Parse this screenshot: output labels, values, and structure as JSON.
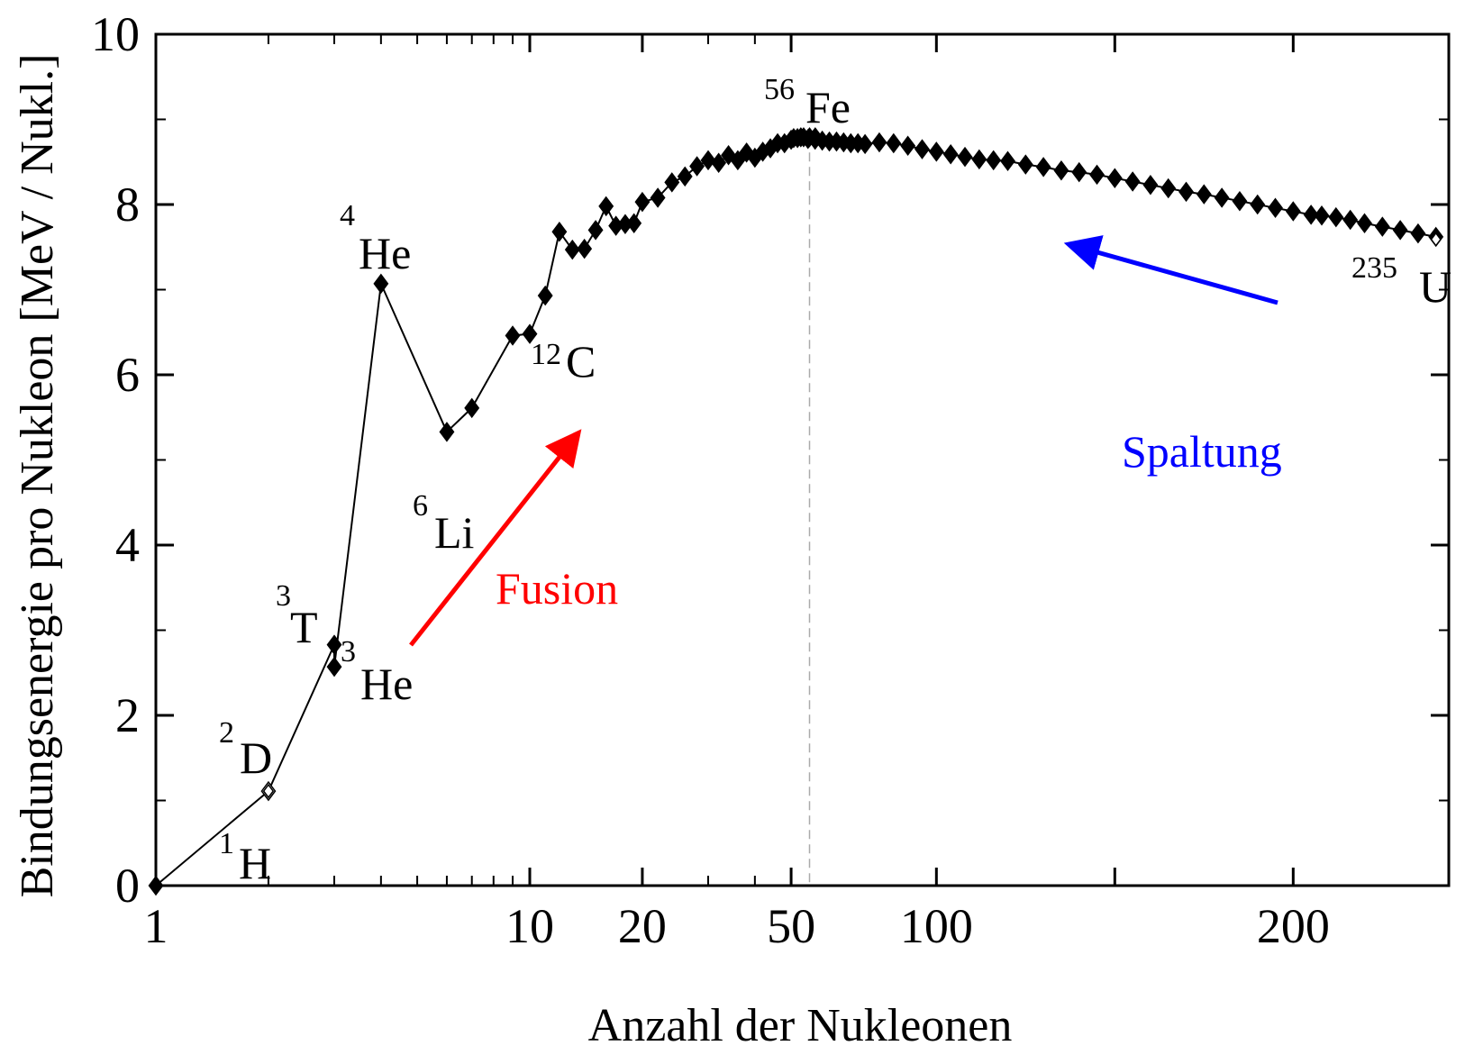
{
  "chart_data": {
    "type": "line",
    "xlabel": "Anzahl der Nukleonen",
    "ylabel": "Bindungsenergie pro Nukleon [MeV / Nukl.]",
    "ylim": [
      0,
      10
    ],
    "xlim": [
      1,
      240
    ],
    "x_scale": "broken: log below ~58, linear above",
    "x_ticks": [
      {
        "value": 1,
        "label": "1"
      },
      {
        "value": 10,
        "label": "10"
      },
      {
        "value": 20,
        "label": "20"
      },
      {
        "value": 50,
        "label": "50"
      },
      {
        "value": 100,
        "label": "100"
      },
      {
        "value": 200,
        "label": "200"
      }
    ],
    "y_ticks": [
      {
        "value": 0,
        "label": "0"
      },
      {
        "value": 2,
        "label": "2"
      },
      {
        "value": 4,
        "label": "4"
      },
      {
        "value": 6,
        "label": "6"
      },
      {
        "value": 8,
        "label": "8"
      },
      {
        "value": 10,
        "label": "10"
      }
    ],
    "grid": false,
    "series": [
      {
        "marker": "filled-diamond",
        "color": "#000000",
        "points": [
          [
            1,
            0.0
          ],
          [
            2,
            1.11
          ],
          [
            3,
            2.83
          ],
          [
            3,
            2.57
          ],
          [
            4,
            7.07
          ],
          [
            6,
            5.33
          ],
          [
            7,
            5.61
          ],
          [
            9,
            6.46
          ],
          [
            10,
            6.48
          ],
          [
            11,
            6.93
          ],
          [
            12,
            7.68
          ],
          [
            13,
            7.47
          ],
          [
            14,
            7.48
          ],
          [
            15,
            7.7
          ],
          [
            16,
            7.98
          ],
          [
            17,
            7.75
          ],
          [
            18,
            7.77
          ],
          [
            19,
            7.78
          ],
          [
            20,
            8.03
          ],
          [
            22,
            8.08
          ],
          [
            24,
            8.26
          ],
          [
            26,
            8.33
          ],
          [
            28,
            8.45
          ],
          [
            30,
            8.52
          ],
          [
            32,
            8.49
          ],
          [
            34,
            8.58
          ],
          [
            36,
            8.52
          ],
          [
            38,
            8.61
          ],
          [
            40,
            8.55
          ],
          [
            42,
            8.62
          ],
          [
            44,
            8.66
          ],
          [
            46,
            8.72
          ],
          [
            48,
            8.72
          ],
          [
            50,
            8.76
          ],
          [
            52,
            8.78
          ],
          [
            54,
            8.79
          ],
          [
            56,
            8.79
          ],
          [
            58,
            8.79
          ],
          [
            60,
            8.78
          ],
          [
            62,
            8.79
          ],
          [
            64,
            8.77
          ],
          [
            66,
            8.76
          ],
          [
            68,
            8.75
          ],
          [
            70,
            8.74
          ],
          [
            72,
            8.74
          ],
          [
            74,
            8.73
          ],
          [
            76,
            8.72
          ],
          [
            78,
            8.72
          ],
          [
            80,
            8.71
          ],
          [
            84,
            8.73
          ],
          [
            88,
            8.72
          ],
          [
            92,
            8.69
          ],
          [
            96,
            8.65
          ],
          [
            100,
            8.62
          ],
          [
            104,
            8.59
          ],
          [
            108,
            8.56
          ],
          [
            112,
            8.53
          ],
          [
            116,
            8.52
          ],
          [
            120,
            8.51
          ],
          [
            125,
            8.47
          ],
          [
            130,
            8.44
          ],
          [
            135,
            8.4
          ],
          [
            140,
            8.38
          ],
          [
            145,
            8.35
          ],
          [
            150,
            8.31
          ],
          [
            155,
            8.27
          ],
          [
            160,
            8.23
          ],
          [
            165,
            8.19
          ],
          [
            170,
            8.15
          ],
          [
            175,
            8.12
          ],
          [
            180,
            8.08
          ],
          [
            185,
            8.04
          ],
          [
            190,
            8.0
          ],
          [
            195,
            7.96
          ],
          [
            200,
            7.92
          ],
          [
            205,
            7.88
          ],
          [
            208,
            7.87
          ],
          [
            212,
            7.85
          ],
          [
            216,
            7.82
          ],
          [
            220,
            7.78
          ],
          [
            225,
            7.74
          ],
          [
            230,
            7.7
          ],
          [
            235,
            7.66
          ],
          [
            240,
            7.62
          ]
        ]
      }
    ],
    "open_markers": [
      {
        "x": 2,
        "y": 1.11
      },
      {
        "x": 240,
        "y": 7.59
      }
    ],
    "reference_line": {
      "x": 56,
      "style": "dashed",
      "color": "#aaaaaa"
    },
    "isotope_labels": [
      {
        "mass": "1",
        "symbol": "H"
      },
      {
        "mass": "2",
        "symbol": "D"
      },
      {
        "mass": "3",
        "symbol": "T"
      },
      {
        "mass": "3",
        "symbol": "He"
      },
      {
        "mass": "4",
        "symbol": "He"
      },
      {
        "mass": "6",
        "symbol": "Li"
      },
      {
        "mass": "12",
        "symbol": "C"
      },
      {
        "mass": "56",
        "symbol": "Fe"
      },
      {
        "mass": "235",
        "symbol": "U"
      }
    ],
    "annotations": [
      {
        "text": "Fusion",
        "color": "#ff0000",
        "arrow": "up-right"
      },
      {
        "text": "Spaltung",
        "color": "#0000ff",
        "arrow": "up-left"
      }
    ]
  }
}
